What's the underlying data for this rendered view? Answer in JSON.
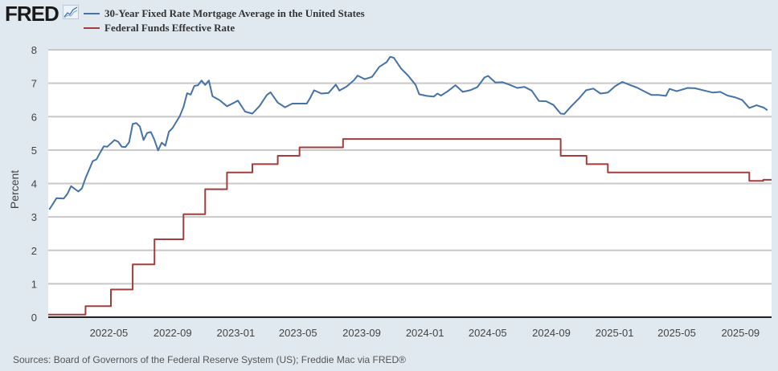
{
  "header": {
    "logo": "FRED",
    "logo_icon": "line-chart-icon"
  },
  "footer": {
    "sources": "Sources: Board of Governors of the Federal Reserve System (US); Freddie Mac via FRED®"
  },
  "chart_data": {
    "type": "line",
    "title": "",
    "xlabel": "",
    "ylabel": "Percent",
    "ylim": [
      0,
      8
    ],
    "yticks": [
      "0",
      "1",
      "2",
      "3",
      "4",
      "5",
      "6",
      "7",
      "8"
    ],
    "xlim": [
      "2022-01-04",
      "2025-10-31"
    ],
    "xticks": [
      "2022-05",
      "2022-09",
      "2023-01",
      "2023-05",
      "2023-09",
      "2024-01",
      "2024-05",
      "2024-09",
      "2025-01",
      "2025-05",
      "2025-09"
    ],
    "grid": true,
    "legend": "top-left",
    "series": [
      {
        "name": "30-Year Fixed Rate Mortgage Average in the United States",
        "color": "#4572a7",
        "step": false,
        "points": [
          [
            "2022-01-06",
            3.22
          ],
          [
            "2022-01-20",
            3.56
          ],
          [
            "2022-02-03",
            3.55
          ],
          [
            "2022-02-10",
            3.69
          ],
          [
            "2022-02-17",
            3.92
          ],
          [
            "2022-03-03",
            3.76
          ],
          [
            "2022-03-10",
            3.85
          ],
          [
            "2022-03-17",
            4.16
          ],
          [
            "2022-03-31",
            4.67
          ],
          [
            "2022-04-07",
            4.72
          ],
          [
            "2022-04-21",
            5.11
          ],
          [
            "2022-04-28",
            5.1
          ],
          [
            "2022-05-12",
            5.3
          ],
          [
            "2022-05-19",
            5.25
          ],
          [
            "2022-05-26",
            5.1
          ],
          [
            "2022-06-02",
            5.09
          ],
          [
            "2022-06-09",
            5.23
          ],
          [
            "2022-06-16",
            5.78
          ],
          [
            "2022-06-23",
            5.81
          ],
          [
            "2022-06-30",
            5.7
          ],
          [
            "2022-07-14",
            5.51
          ],
          [
            "2022-07-07",
            5.3
          ],
          [
            "2022-07-21",
            5.54
          ],
          [
            "2022-07-28",
            5.3
          ],
          [
            "2022-08-04",
            4.99
          ],
          [
            "2022-08-11",
            5.22
          ],
          [
            "2022-08-18",
            5.13
          ],
          [
            "2022-08-25",
            5.55
          ],
          [
            "2022-09-01",
            5.66
          ],
          [
            "2022-09-15",
            6.02
          ],
          [
            "2022-09-22",
            6.29
          ],
          [
            "2022-09-29",
            6.7
          ],
          [
            "2022-10-06",
            6.66
          ],
          [
            "2022-10-13",
            6.92
          ],
          [
            "2022-10-20",
            6.94
          ],
          [
            "2022-10-27",
            7.08
          ],
          [
            "2022-11-03",
            6.95
          ],
          [
            "2022-11-10",
            7.08
          ],
          [
            "2022-11-17",
            6.61
          ],
          [
            "2022-12-01",
            6.49
          ],
          [
            "2022-12-15",
            6.31
          ],
          [
            "2022-12-29",
            6.42
          ],
          [
            "2023-01-05",
            6.48
          ],
          [
            "2023-01-19",
            6.15
          ],
          [
            "2023-02-02",
            6.09
          ],
          [
            "2023-02-16",
            6.32
          ],
          [
            "2023-03-02",
            6.65
          ],
          [
            "2023-03-09",
            6.73
          ],
          [
            "2023-03-23",
            6.42
          ],
          [
            "2023-04-06",
            6.28
          ],
          [
            "2023-04-20",
            6.39
          ],
          [
            "2023-05-04",
            6.39
          ],
          [
            "2023-05-18",
            6.39
          ],
          [
            "2023-05-25",
            6.57
          ],
          [
            "2023-06-01",
            6.79
          ],
          [
            "2023-06-15",
            6.69
          ],
          [
            "2023-06-29",
            6.71
          ],
          [
            "2023-07-13",
            6.96
          ],
          [
            "2023-07-20",
            6.78
          ],
          [
            "2023-08-03",
            6.9
          ],
          [
            "2023-08-17",
            7.09
          ],
          [
            "2023-08-24",
            7.23
          ],
          [
            "2023-09-07",
            7.12
          ],
          [
            "2023-09-21",
            7.19
          ],
          [
            "2023-10-05",
            7.49
          ],
          [
            "2023-10-19",
            7.63
          ],
          [
            "2023-10-26",
            7.79
          ],
          [
            "2023-11-02",
            7.76
          ],
          [
            "2023-11-16",
            7.44
          ],
          [
            "2023-11-30",
            7.22
          ],
          [
            "2023-12-14",
            6.95
          ],
          [
            "2023-12-21",
            6.67
          ],
          [
            "2024-01-04",
            6.62
          ],
          [
            "2024-01-18",
            6.6
          ],
          [
            "2024-01-25",
            6.69
          ],
          [
            "2024-02-01",
            6.63
          ],
          [
            "2024-02-15",
            6.77
          ],
          [
            "2024-02-29",
            6.94
          ],
          [
            "2024-03-14",
            6.74
          ],
          [
            "2024-03-28",
            6.79
          ],
          [
            "2024-04-11",
            6.88
          ],
          [
            "2024-04-25",
            7.17
          ],
          [
            "2024-05-02",
            7.22
          ],
          [
            "2024-05-16",
            7.02
          ],
          [
            "2024-05-30",
            7.03
          ],
          [
            "2024-06-13",
            6.95
          ],
          [
            "2024-06-27",
            6.86
          ],
          [
            "2024-07-11",
            6.89
          ],
          [
            "2024-07-25",
            6.78
          ],
          [
            "2024-08-08",
            6.47
          ],
          [
            "2024-08-22",
            6.46
          ],
          [
            "2024-09-05",
            6.35
          ],
          [
            "2024-09-19",
            6.09
          ],
          [
            "2024-09-26",
            6.08
          ],
          [
            "2024-10-10",
            6.32
          ],
          [
            "2024-10-24",
            6.54
          ],
          [
            "2024-11-07",
            6.79
          ],
          [
            "2024-11-21",
            6.84
          ],
          [
            "2024-12-05",
            6.69
          ],
          [
            "2024-12-19",
            6.72
          ],
          [
            "2025-01-02",
            6.91
          ],
          [
            "2025-01-16",
            7.04
          ],
          [
            "2025-01-30",
            6.95
          ],
          [
            "2025-02-13",
            6.87
          ],
          [
            "2025-02-27",
            6.76
          ],
          [
            "2025-03-13",
            6.65
          ],
          [
            "2025-03-27",
            6.65
          ],
          [
            "2025-04-10",
            6.62
          ],
          [
            "2025-04-17",
            6.83
          ],
          [
            "2025-05-01",
            6.76
          ],
          [
            "2025-05-22",
            6.86
          ],
          [
            "2025-06-05",
            6.85
          ],
          [
            "2025-06-26",
            6.77
          ],
          [
            "2025-07-10",
            6.72
          ],
          [
            "2025-07-24",
            6.74
          ],
          [
            "2025-08-07",
            6.63
          ],
          [
            "2025-08-21",
            6.58
          ],
          [
            "2025-09-04",
            6.5
          ],
          [
            "2025-09-18",
            6.26
          ],
          [
            "2025-10-02",
            6.34
          ],
          [
            "2025-10-16",
            6.27
          ],
          [
            "2025-10-23",
            6.19
          ]
        ]
      },
      {
        "name": "Federal Funds Effective Rate",
        "color": "#a33d3d",
        "step": true,
        "points": [
          [
            "2022-01-04",
            0.08
          ],
          [
            "2022-03-17",
            0.33
          ],
          [
            "2022-05-05",
            0.83
          ],
          [
            "2022-06-16",
            1.58
          ],
          [
            "2022-07-28",
            2.33
          ],
          [
            "2022-09-22",
            3.08
          ],
          [
            "2022-11-03",
            3.83
          ],
          [
            "2022-12-15",
            4.33
          ],
          [
            "2023-02-02",
            4.58
          ],
          [
            "2023-03-23",
            4.83
          ],
          [
            "2023-05-04",
            5.08
          ],
          [
            "2023-07-27",
            5.33
          ],
          [
            "2024-09-19",
            4.83
          ],
          [
            "2024-11-08",
            4.58
          ],
          [
            "2024-12-19",
            4.33
          ],
          [
            "2025-09-18",
            4.08
          ],
          [
            "2025-10-15",
            4.11
          ],
          [
            "2025-10-31",
            4.11
          ]
        ]
      }
    ]
  }
}
